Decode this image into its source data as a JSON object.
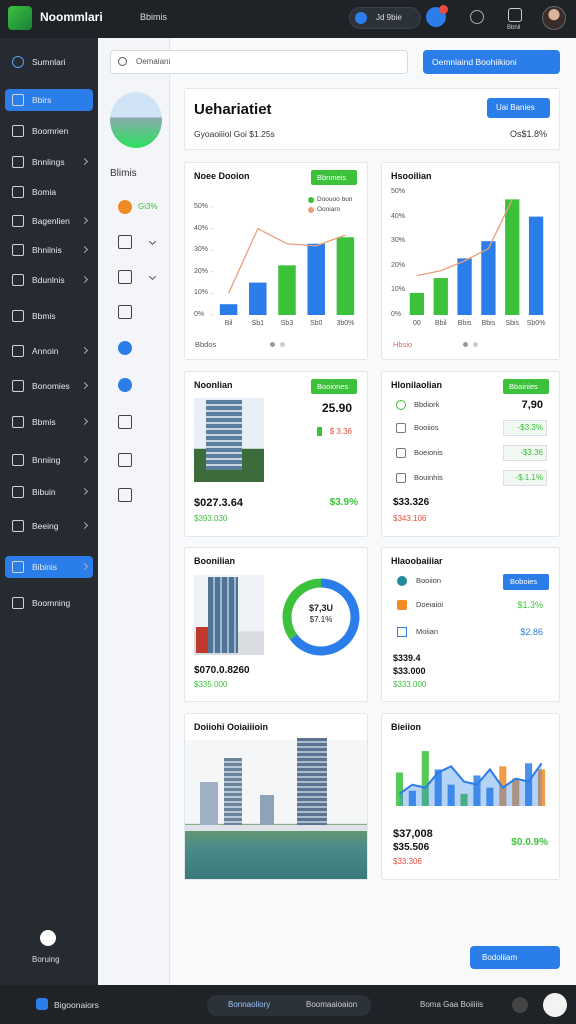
{
  "topbar": {
    "app_name": "Noommlari",
    "tab": "Bbimis",
    "pill": "Jd 9bie",
    "badge": "Bbhll"
  },
  "sidebar": {
    "items": [
      {
        "label": "Sumnlari"
      },
      {
        "label": "Bbirs",
        "active": true
      },
      {
        "label": "Boomrien"
      },
      {
        "label": "Bnnlings"
      },
      {
        "label": "Bomia"
      },
      {
        "label": "Bagenlien"
      },
      {
        "label": "Bhnilnis"
      },
      {
        "label": "Bdunlnis"
      },
      {
        "label": "Bbmis"
      },
      {
        "label": "Annoin"
      },
      {
        "label": "Bonomies"
      },
      {
        "label": "Bbmis"
      },
      {
        "label": "Bnniing"
      },
      {
        "label": "Bibuin"
      },
      {
        "label": "Beeing"
      },
      {
        "label": "Bibinis",
        "active": true
      },
      {
        "label": "Boomning"
      }
    ],
    "footer": "Boruing"
  },
  "subnav": {
    "title": "Blimis",
    "stat": "Gi3%"
  },
  "search": {
    "placeholder": "Oemaiani",
    "button": "Oemnlaind  Boohiikioni"
  },
  "header": {
    "title": "Uehariatiet",
    "button": "Uai Banies",
    "subtitle": "Gyoaoiiiol  Goi $1.25s",
    "stat": "Os$1.8%"
  },
  "cards": [
    {
      "title": "Noee Dooion",
      "button": "Bbnmeis",
      "footer": "Bbdos",
      "chart": {
        "type": "bar",
        "categories": [
          "Bil",
          "Sb1",
          "Sb3",
          "Sb0",
          "3b0%"
        ],
        "ylim": [
          0,
          50
        ],
        "yticks": [
          {
            "value": 0,
            "label": "0%"
          },
          {
            "value": 10,
            "label": "10%"
          },
          {
            "value": 20,
            "label": "20%"
          },
          {
            "value": 30,
            "label": "30%"
          },
          {
            "value": 40,
            "label": "40%"
          },
          {
            "value": 50,
            "label": "50%"
          }
        ],
        "series": [
          {
            "name": "Doouoo bun",
            "type": "bar",
            "color": "#3cc13b",
            "colors": [
              "#2b7de9",
              "#2b7de9",
              "#3cc13b",
              "#2b7de9",
              "#3cc13b"
            ],
            "values": [
              5,
              15,
              23,
              33,
              36
            ]
          },
          {
            "name": "Ooniaro",
            "type": "line",
            "color": "#e8a07a",
            "values": [
              10,
              40,
              33,
              32,
              37
            ]
          }
        ]
      }
    },
    {
      "title": "Hsooilian",
      "footer": "Hbsio",
      "chart": {
        "type": "bar",
        "categories": [
          "00",
          "Bbil",
          "Bbis",
          "Bbis",
          "Sbis",
          "Sb0%"
        ],
        "ylim": [
          0,
          50
        ],
        "yticks": [
          {
            "value": 0,
            "label": "0%"
          },
          {
            "value": 10,
            "label": "10%"
          },
          {
            "value": 20,
            "label": "20%"
          },
          {
            "value": 30,
            "label": "30%"
          },
          {
            "value": 40,
            "label": "40%"
          },
          {
            "value": 50,
            "label": "50%"
          }
        ],
        "series": [
          {
            "type": "bar",
            "colors": [
              "#3cc13b",
              "#3cc13b",
              "#2b7de9",
              "#2b7de9",
              "#3cc13b",
              "#2b7de9"
            ],
            "values": [
              9,
              15,
              23,
              30,
              47,
              40
            ]
          },
          {
            "type": "line",
            "color": "#e8a07a",
            "values": [
              16,
              18,
              22,
              27,
              47,
              null
            ]
          }
        ]
      }
    },
    {
      "title": "Noonlian",
      "button": "Booiones",
      "value": "25.90",
      "change": "$ 3.36",
      "total": "$027.3.64",
      "total_change": "$3.9%",
      "sub": "$393.030"
    },
    {
      "title": "Hlonilaolian",
      "button": "Bbainies",
      "rows": [
        {
          "label": "Bbdiork",
          "value": "7,90"
        },
        {
          "label": "Booiios",
          "value": "-$3.3%"
        },
        {
          "label": "Boeionis",
          "value": "-$3.36"
        },
        {
          "label": "Bouinhis",
          "value": "-$.1.1%"
        }
      ],
      "total": "$33.326",
      "sub": "$343.106"
    },
    {
      "title": "Boonilian",
      "donut_value": "$7,3U",
      "donut_change": "$7.1%",
      "donut": [
        {
          "color": "#2b7de9",
          "value": 65
        },
        {
          "color": "#3cc13b",
          "value": 35
        }
      ],
      "total": "$070.0.8260",
      "sub": "$335.000"
    },
    {
      "title": "Hlaoobaiiiar",
      "button": "Boboies",
      "rows": [
        {
          "label": "Booiion"
        },
        {
          "label": "Doeiaioi",
          "value": "$1.3%"
        },
        {
          "label": "Moiian",
          "value": "$2.86"
        }
      ],
      "totals": [
        "$339.4",
        "$33.000"
      ],
      "sub": "$333.000"
    },
    {
      "title": "Doiiohi Ooiaiiioin"
    },
    {
      "title": "Bieiion",
      "chart": {
        "type": "area",
        "ylim": [
          0,
          100
        ],
        "series": [
          {
            "type": "bar",
            "colors": [
              "#3cc13b",
              "#2b7de9",
              "#3cc13b",
              "#2b7de9",
              "#2b7de9",
              "#3cc13b",
              "#2b7de9",
              "#2b7de9",
              "#f08a24",
              "#f08a24",
              "#2b7de9",
              "#f08a24"
            ],
            "values": [
              55,
              25,
              90,
              60,
              35,
              20,
              50,
              30,
              65,
              45,
              70,
              60
            ]
          },
          {
            "type": "area",
            "color": "#2b7de9",
            "values": [
              20,
              35,
              30,
              55,
              65,
              40,
              35,
              60,
              30,
              45,
              40,
              70
            ]
          }
        ]
      },
      "values": [
        "$37,008",
        "$35.506"
      ],
      "sub": "$33.306",
      "change": "$0.0.9%"
    }
  ],
  "fab": "Bodoliiam",
  "bottombar": {
    "left": "Bigoonaiors",
    "tab1": "Bonnaoliory",
    "tab2": "Boomaaioaion",
    "right": "Boma Gaa Boiiiiis"
  }
}
